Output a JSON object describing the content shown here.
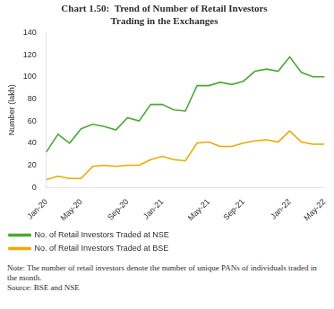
{
  "chart_data": {
    "type": "line",
    "title": "Chart 1.50:  Trend of Number of Retail Investors\nTrading in the Exchanges",
    "y_label": "Number (lakh)",
    "categories": [
      "Jan-20",
      null,
      null,
      "May-20",
      null,
      null,
      null,
      "Sep-20",
      null,
      null,
      "Jan-21",
      null,
      null,
      null,
      "May-21",
      null,
      null,
      "Sep-21",
      null,
      null,
      null,
      "Jan-22",
      null,
      null,
      "May-22"
    ],
    "series": [
      {
        "name": "No. of Retail Investors Traded at NSE",
        "color": "#4da832",
        "values": [
          32,
          48,
          40,
          53,
          57,
          55,
          52,
          63,
          60,
          75,
          75,
          70,
          69,
          92,
          92,
          95,
          93,
          96,
          105,
          107,
          105,
          118,
          104,
          100,
          100
        ]
      },
      {
        "name": "No. of Retail Investors Traded at BSE",
        "color": "#f0a800",
        "values": [
          7,
          10,
          8,
          8,
          19,
          20,
          19,
          20,
          20,
          25,
          28,
          25,
          24,
          40,
          41,
          37,
          37,
          40,
          42,
          43,
          41,
          51,
          41,
          39,
          39
        ]
      }
    ],
    "ylim": [
      0,
      140
    ],
    "yticks": [
      0,
      20,
      40,
      60,
      80,
      100,
      120,
      140
    ],
    "grid": false,
    "legend": "bottom",
    "marker": "none",
    "annotations": [
      "Note: The number of retail investors denote the number of unique PANs of individuals traded in the month.",
      "Source: BSE and NSE"
    ]
  }
}
